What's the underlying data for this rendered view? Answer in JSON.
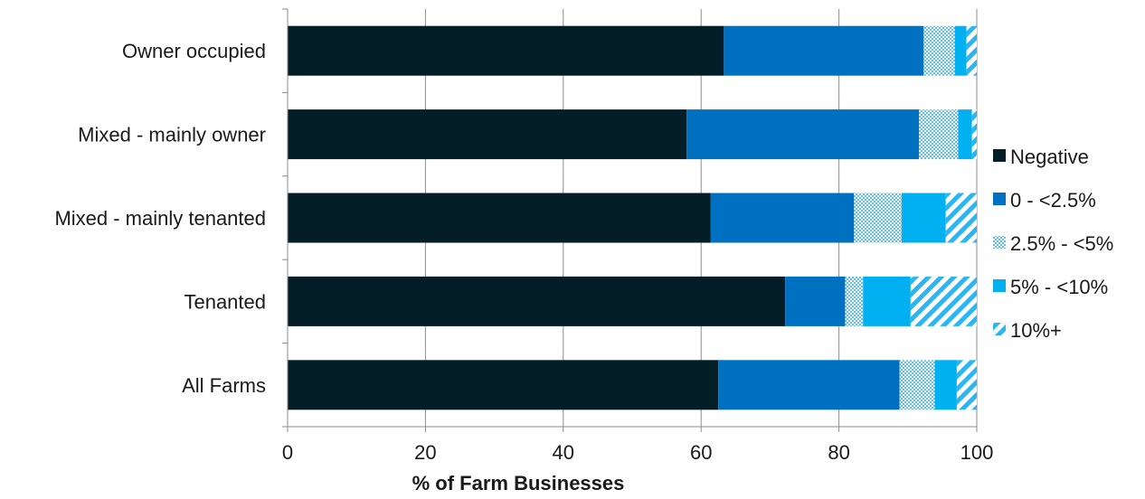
{
  "chart_data": {
    "type": "bar",
    "orientation": "horizontal",
    "stacked": true,
    "title": "",
    "xlabel": "% of Farm Businesses",
    "ylabel": "",
    "xlim": [
      0,
      100
    ],
    "xticks": [
      0,
      20,
      40,
      60,
      80,
      100
    ],
    "grid": "vertical gridlines",
    "legend_position": "right",
    "categories": [
      "Owner occupied",
      "Mixed - mainly owner",
      "Mixed - mainly tenanted",
      "Tenanted",
      "All Farms"
    ],
    "series": [
      {
        "name": "Negative",
        "color": "#041e28",
        "pattern": "solid",
        "values": [
          63.3,
          57.9,
          61.4,
          72.2,
          62.5
        ]
      },
      {
        "name": "0 - <2.5%",
        "color": "#0070c0",
        "pattern": "solid",
        "values": [
          29.0,
          33.7,
          20.8,
          8.7,
          26.3
        ]
      },
      {
        "name": "2.5% - <5%",
        "color": "#8fd3f5",
        "pattern": "dotted",
        "values": [
          4.5,
          5.7,
          6.9,
          2.6,
          5.1
        ]
      },
      {
        "name": "5% - <10%",
        "color": "#00b0f0",
        "pattern": "solid",
        "values": [
          1.7,
          2.0,
          6.4,
          6.9,
          3.2
        ]
      },
      {
        "name": "10%+",
        "color": "#3fc1f5",
        "pattern": "diagonal-stripes",
        "values": [
          1.5,
          0.7,
          4.5,
          9.6,
          2.9
        ]
      }
    ]
  }
}
